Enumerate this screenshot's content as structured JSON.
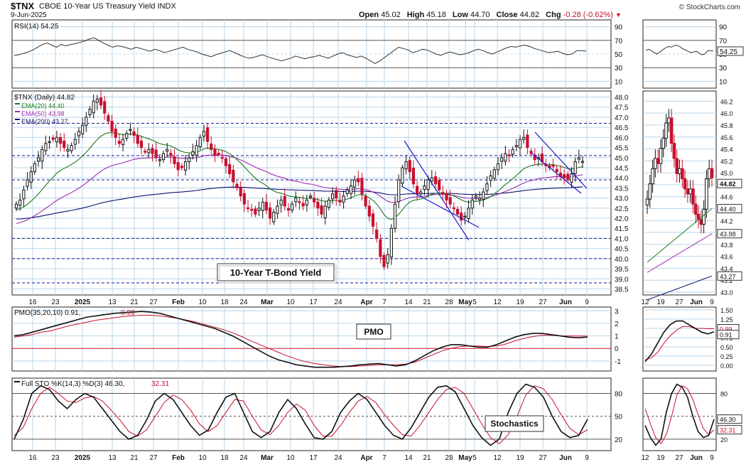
{
  "header": {
    "symbol": "$TNX",
    "name": "CBOE 10-Year US Treasury Yield INDX",
    "date": "9-Jun-2025",
    "open_label": "Open",
    "open": "45.02",
    "high_label": "High",
    "high": "45.18",
    "low_label": "Low",
    "low": "44.70",
    "close_label": "Close",
    "close": "44.82",
    "chg_label": "Chg",
    "chg": "-0.28 (-0.62%)",
    "copyright": "© StockCharts.com"
  },
  "colors": {
    "up": "#111111",
    "down": "#c8102e",
    "ema20": "#1a7a1a",
    "ema50": "#9c2cb0",
    "ema200": "#10106e",
    "grid": "#b8d4ea",
    "trend": "#1a1ac8",
    "signal": "#c8102e"
  },
  "chart_data": [
    {
      "type": "line",
      "title": "RSI(14) 54.25",
      "value_label": "54.25",
      "yticks": [
        10,
        30,
        50,
        70,
        90
      ],
      "ylim": [
        0,
        100
      ],
      "series": [
        {
          "name": "RSI(14)",
          "values": [
            48,
            49,
            51,
            53,
            56,
            60,
            64,
            66,
            63,
            60,
            64,
            62,
            64,
            65,
            67,
            69,
            72,
            74,
            70,
            66,
            63,
            60,
            62,
            61,
            59,
            57,
            60,
            58,
            56,
            54,
            57,
            55,
            52,
            54,
            56,
            58,
            60,
            57,
            55,
            53,
            50,
            48,
            46,
            49,
            51,
            53,
            55,
            52,
            49,
            46,
            44,
            45,
            47,
            49,
            46,
            44,
            42,
            40,
            42,
            44,
            47,
            45,
            43,
            45,
            46,
            48,
            46,
            44,
            47,
            50,
            52,
            49,
            47,
            45,
            47,
            44,
            40,
            36,
            40,
            45,
            50,
            55,
            60,
            58,
            56,
            52,
            54,
            57,
            56,
            53,
            50,
            48,
            51,
            53,
            51,
            49,
            50,
            52,
            55,
            57,
            55,
            52,
            50,
            53,
            56,
            59,
            61,
            60,
            62,
            63,
            61,
            58,
            56,
            54,
            52,
            53,
            54,
            51,
            49,
            50,
            55,
            55,
            54.25
          ]
        }
      ]
    },
    {
      "type": "candlestick",
      "title": "$TNX (Daily) 44.82",
      "annotation": "10-Year T-Bond Yield",
      "yticks": [
        38.5,
        39.0,
        39.5,
        40.0,
        40.5,
        41.0,
        41.5,
        42.0,
        42.5,
        43.0,
        43.5,
        44.0,
        44.5,
        45.0,
        45.5,
        46.0,
        46.5,
        47.0,
        47.5,
        48.0
      ],
      "ylim": [
        38.2,
        48.3
      ],
      "x_tick_labels": [
        "16",
        "23",
        "2025",
        "13",
        "21",
        "27",
        "Feb",
        "10",
        "18",
        "24",
        "Mar",
        "10",
        "17",
        "24",
        "Apr",
        "7",
        "14",
        "21",
        "28",
        "May",
        "5",
        "12",
        "19",
        "27",
        "Jun",
        "9"
      ],
      "close": [
        42.7,
        42.9,
        43.4,
        43.9,
        44.3,
        44.7,
        45.0,
        45.4,
        45.7,
        45.8,
        45.9,
        46.0,
        45.7,
        45.5,
        45.4,
        45.6,
        45.9,
        46.3,
        46.6,
        47.0,
        47.4,
        47.8,
        47.9,
        47.6,
        47.2,
        46.8,
        46.3,
        46.0,
        45.7,
        45.9,
        46.2,
        46.4,
        46.1,
        45.7,
        45.5,
        45.3,
        45.4,
        45.2,
        45.0,
        44.9,
        45.2,
        45.4,
        45.1,
        44.7,
        44.4,
        44.5,
        44.8,
        45.0,
        45.3,
        45.6,
        46.0,
        46.3,
        45.8,
        45.4,
        45.1,
        45.2,
        45.0,
        44.6,
        44.2,
        43.8,
        43.5,
        43.1,
        42.7,
        42.5,
        42.4,
        42.2,
        42.5,
        42.8,
        42.4,
        42.0,
        42.3,
        42.6,
        42.9,
        42.6,
        42.4,
        42.7,
        43.0,
        42.8,
        42.6,
        42.9,
        43.1,
        42.8,
        42.5,
        42.2,
        42.6,
        42.9,
        43.2,
        43.0,
        42.8,
        43.1,
        43.4,
        43.6,
        43.9,
        43.8,
        43.2,
        42.6,
        42.1,
        41.6,
        41.0,
        40.1,
        39.6,
        40.2,
        41.5,
        42.7,
        43.9,
        44.5,
        44.8,
        44.3,
        43.7,
        43.2,
        43.3,
        43.6,
        43.9,
        44.0,
        43.7,
        43.4,
        43.2,
        42.9,
        42.7,
        42.5,
        42.2,
        41.9,
        42.1,
        42.5,
        42.9,
        43.1,
        43.0,
        43.3,
        43.7,
        44.1,
        44.4,
        44.7,
        45.0,
        45.2,
        45.1,
        45.4,
        45.6,
        45.9,
        46.0,
        45.5,
        45.2,
        44.9,
        45.0,
        44.8,
        44.6,
        44.5,
        44.6,
        44.3,
        44.1,
        44.0,
        43.9,
        44.2,
        44.8,
        45.0,
        44.82
      ]
    },
    {
      "type": "line",
      "title": "PMO(35,20,10) 0.91, 0.99",
      "label": "PMO",
      "yticks": [
        -1,
        0,
        1,
        2,
        3
      ],
      "ylim": [
        -1.8,
        3.3
      ],
      "series": [
        {
          "name": "PMO(35,20,10)",
          "value": "0.91",
          "values": [
            1.0,
            1.1,
            1.3,
            1.5,
            1.7,
            1.9,
            2.1,
            2.3,
            2.5,
            2.6,
            2.7,
            2.8,
            2.85,
            2.9,
            2.95,
            2.9,
            2.8,
            2.6,
            2.4,
            2.2,
            2.0,
            1.8,
            1.6,
            1.3,
            1.0,
            0.6,
            0.2,
            -0.2,
            -0.6,
            -0.9,
            -1.1,
            -1.3,
            -1.4,
            -1.5,
            -1.5,
            -1.5,
            -1.45,
            -1.4,
            -1.3,
            -1.25,
            -1.2,
            -1.3,
            -1.4,
            -1.3,
            -1.0,
            -0.6,
            -0.2,
            0.1,
            0.3,
            0.3,
            0.2,
            0.1,
            0.1,
            0.3,
            0.6,
            0.9,
            1.1,
            1.2,
            1.2,
            1.1,
            1.0,
            0.9,
            0.85,
            0.91
          ]
        },
        {
          "name": "Signal",
          "value": "0.99",
          "values": [
            0.9,
            1.0,
            1.1,
            1.3,
            1.4,
            1.6,
            1.8,
            1.95,
            2.1,
            2.25,
            2.35,
            2.45,
            2.55,
            2.6,
            2.65,
            2.65,
            2.6,
            2.5,
            2.4,
            2.25,
            2.1,
            1.9,
            1.7,
            1.5,
            1.25,
            0.95,
            0.6,
            0.3,
            0.0,
            -0.3,
            -0.6,
            -0.85,
            -1.05,
            -1.2,
            -1.3,
            -1.4,
            -1.45,
            -1.45,
            -1.4,
            -1.35,
            -1.3,
            -1.3,
            -1.3,
            -1.25,
            -1.1,
            -0.8,
            -0.5,
            -0.2,
            0.0,
            0.15,
            0.2,
            0.2,
            0.15,
            0.2,
            0.35,
            0.6,
            0.8,
            0.95,
            1.05,
            1.05,
            1.0,
            1.0,
            0.99,
            0.99
          ]
        }
      ]
    },
    {
      "type": "line",
      "title": "Full STO %K(14,3) %D(3) 46.30, 32.31",
      "label": "Stochastics",
      "yticks": [
        20,
        50,
        80
      ],
      "ylim": [
        5,
        100
      ],
      "series": [
        {
          "name": "%K(14,3)",
          "value": "46.30",
          "values": [
            20,
            45,
            80,
            90,
            85,
            70,
            60,
            72,
            80,
            75,
            60,
            45,
            30,
            20,
            25,
            45,
            70,
            80,
            72,
            55,
            38,
            25,
            32,
            55,
            75,
            80,
            55,
            30,
            22,
            30,
            55,
            72,
            60,
            40,
            22,
            20,
            30,
            55,
            70,
            80,
            72,
            55,
            38,
            25,
            20,
            35,
            55,
            75,
            88,
            90,
            82,
            60,
            38,
            22,
            12,
            20,
            55,
            80,
            92,
            88,
            75,
            50,
            30,
            22,
            25,
            46.3
          ]
        },
        {
          "name": "%D(3)",
          "value": "32.31",
          "values": [
            25,
            35,
            60,
            80,
            88,
            80,
            70,
            68,
            74,
            76,
            70,
            58,
            45,
            30,
            24,
            32,
            50,
            68,
            78,
            72,
            58,
            40,
            30,
            38,
            55,
            72,
            70,
            50,
            32,
            26,
            38,
            55,
            66,
            58,
            38,
            24,
            24,
            38,
            55,
            70,
            76,
            68,
            52,
            38,
            26,
            24,
            38,
            55,
            72,
            85,
            88,
            80,
            60,
            40,
            22,
            14,
            26,
            50,
            78,
            90,
            86,
            72,
            52,
            34,
            26,
            32.31
          ]
        }
      ]
    }
  ],
  "mini": {
    "x_tick_labels": [
      "12",
      "19",
      "27",
      "Jun",
      "9"
    ],
    "price_yticks": [
      "43.0",
      "43.2",
      "43.4",
      "43.6",
      "43.8",
      "44.0",
      "44.2",
      "44.4",
      "44.6",
      "44.8",
      "45.0",
      "45.2",
      "45.4",
      "45.6",
      "45.8",
      "46.0",
      "46.2"
    ],
    "price_badges": [
      "44.82",
      "44.40",
      "43.98",
      "43.27"
    ],
    "rsi_badge": "54.25",
    "pmo_yticks": [
      "0.00",
      "0.25",
      "0.50",
      "0.75",
      "1.00",
      "1.25",
      "1.50"
    ],
    "pmo_badges": [
      "0.99",
      "0.91"
    ],
    "sto_badges": [
      "46.30",
      "32.31"
    ]
  }
}
